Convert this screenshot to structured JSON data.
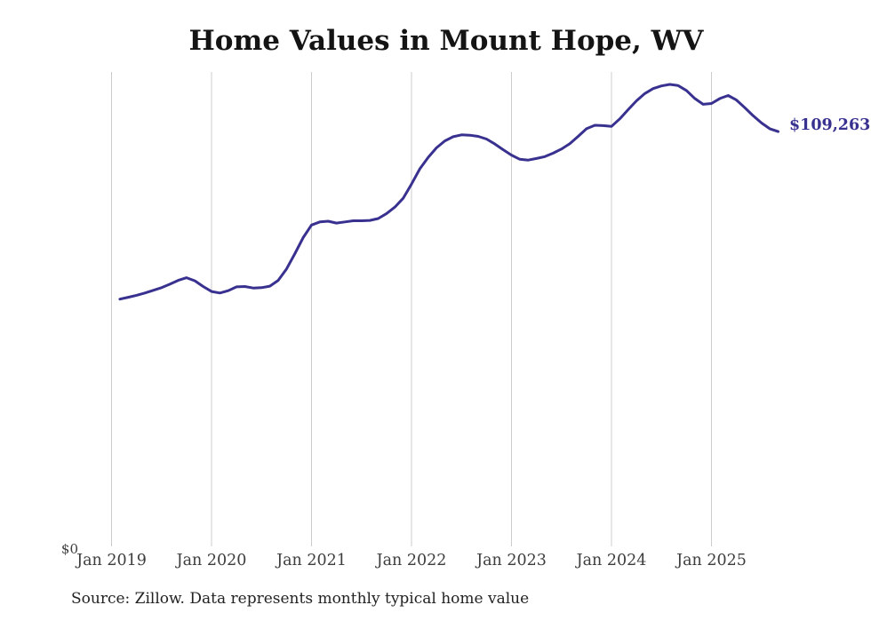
{
  "title": "Home Values in Mount Hope, WV",
  "source_note": "Source: Zillow. Data represents monthly typical home value",
  "chart_data": {
    "type": "line",
    "title": "Home Values in Mount Hope, WV",
    "xlabel": "",
    "ylabel": "",
    "x_ticks": [
      "Jan 2019",
      "Jan 2020",
      "Jan 2021",
      "Jan 2022",
      "Jan 2023",
      "Jan 2024",
      "Jan 2025"
    ],
    "y_zero_label": "$0",
    "end_label": "$109,263",
    "latest_value": 109263,
    "ylim": [
      0,
      125000
    ],
    "grid": "vertical-only",
    "legend": "none",
    "line_color": "#39318f",
    "grid_color": "#cccccc",
    "series": {
      "name": "Monthly typical home value (USD)",
      "months": [
        "2019-02",
        "2019-03",
        "2019-04",
        "2019-05",
        "2019-06",
        "2019-07",
        "2019-08",
        "2019-09",
        "2019-10",
        "2019-11",
        "2019-12",
        "2020-01",
        "2020-02",
        "2020-03",
        "2020-04",
        "2020-05",
        "2020-06",
        "2020-07",
        "2020-08",
        "2020-09",
        "2020-10",
        "2020-11",
        "2020-12",
        "2021-01",
        "2021-02",
        "2021-03",
        "2021-04",
        "2021-05",
        "2021-06",
        "2021-07",
        "2021-08",
        "2021-09",
        "2021-10",
        "2021-11",
        "2021-12",
        "2022-01",
        "2022-02",
        "2022-03",
        "2022-04",
        "2022-05",
        "2022-06",
        "2022-07",
        "2022-08",
        "2022-09",
        "2022-10",
        "2022-11",
        "2022-12",
        "2023-01",
        "2023-02",
        "2023-03",
        "2023-04",
        "2023-05",
        "2023-06",
        "2023-07",
        "2023-08",
        "2023-09",
        "2023-10",
        "2023-11",
        "2023-12",
        "2024-01",
        "2024-02",
        "2024-03",
        "2024-04",
        "2024-05",
        "2024-06",
        "2024-07",
        "2024-08",
        "2024-09",
        "2024-10",
        "2024-11",
        "2024-12",
        "2025-01",
        "2025-02",
        "2025-03",
        "2025-04",
        "2025-05",
        "2025-06",
        "2025-07",
        "2025-08",
        "2025-09"
      ],
      "values": [
        65400,
        65900,
        66400,
        67000,
        67700,
        68400,
        69300,
        70300,
        71000,
        70200,
        68700,
        67400,
        67000,
        67600,
        68600,
        68700,
        68300,
        68400,
        68800,
        70300,
        73300,
        77300,
        81500,
        84800,
        85600,
        85800,
        85300,
        85600,
        85900,
        85900,
        86000,
        86500,
        87800,
        89500,
        91800,
        95500,
        99500,
        102500,
        105000,
        106800,
        107900,
        108400,
        108300,
        108000,
        107300,
        106000,
        104500,
        103100,
        102000,
        101800,
        102200,
        102700,
        103600,
        104700,
        106100,
        108000,
        110000,
        110900,
        110800,
        110600,
        112600,
        115000,
        117300,
        119200,
        120500,
        121200,
        121600,
        121300,
        120000,
        117900,
        116400,
        116600,
        117900,
        118700,
        117500,
        115500,
        113400,
        111500,
        110000,
        109263
      ]
    }
  }
}
